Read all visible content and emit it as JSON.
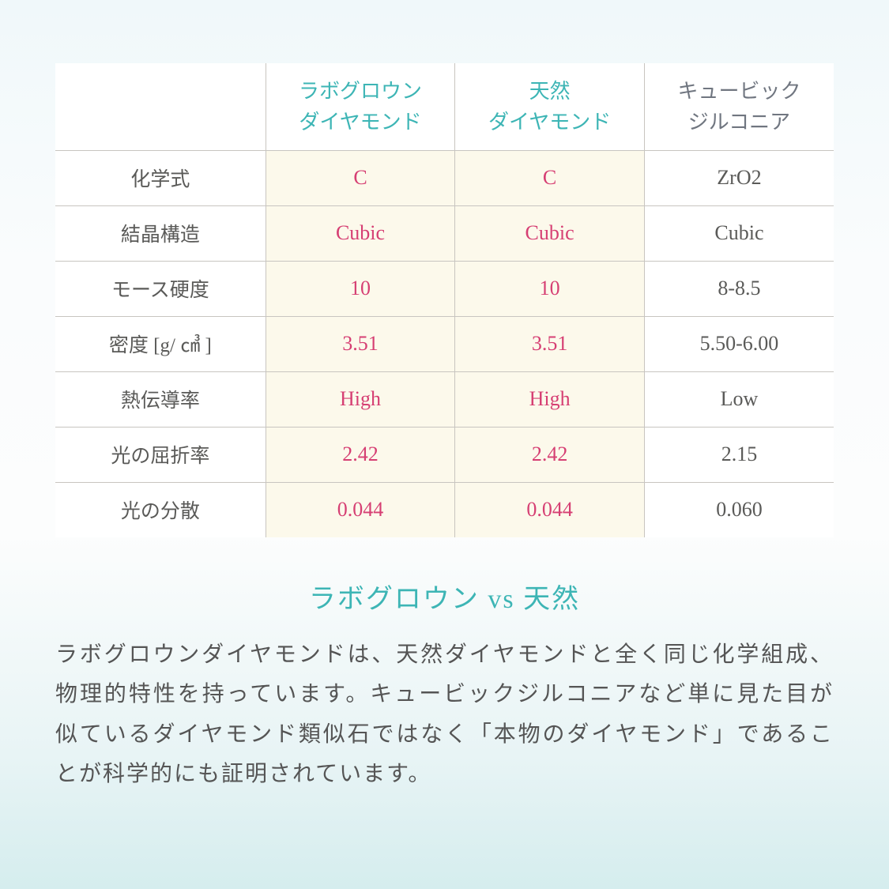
{
  "table": {
    "headers": {
      "corner": "",
      "labgrown": "ラボグロウン<br>ダイヤモンド",
      "natural": "天然<br>ダイヤモンド",
      "cz": "キュービック<br>ジルコニア"
    },
    "rows": [
      {
        "label": "化学式",
        "lab": "C",
        "nat": "C",
        "cz": "ZrO2"
      },
      {
        "label": "結晶構造",
        "lab": "Cubic",
        "nat": "Cubic",
        "cz": "Cubic"
      },
      {
        "label": "モース硬度",
        "lab": "10",
        "nat": "10",
        "cz": "8-8.5"
      },
      {
        "label": "密度 [g/ ㎤ ]",
        "lab": "3.51",
        "nat": "3.51",
        "cz": "5.50-6.00"
      },
      {
        "label": "熱伝導率",
        "lab": "High",
        "nat": "High",
        "cz": "Low"
      },
      {
        "label": "光の屈折率",
        "lab": "2.42",
        "nat": "2.42",
        "cz": "2.15"
      },
      {
        "label": "光の分散",
        "lab": "0.044",
        "nat": "0.044",
        "cz": "0.060"
      }
    ]
  },
  "title": "ラボグロウン vs 天然",
  "description": "ラボグロウンダイヤモンドは、天然ダイヤモンドと全く同じ化学組成、物理的特性を持っています。キュービックジルコニアなど単に見た目が似ているダイヤモンド類似石ではなく「本物のダイヤモンド」であることが科学的にも証明されています。",
  "styling": {
    "highlight_color": "#d63f73",
    "header_teal_color": "#3db5b5",
    "highlight_bg": "#fcf9eb",
    "text_gray": "#5a5a58",
    "cz_header_color": "#707680",
    "border_color": "#c8c5c0",
    "body_fontsize": 26,
    "title_fontsize": 34,
    "desc_fontsize": 28
  }
}
